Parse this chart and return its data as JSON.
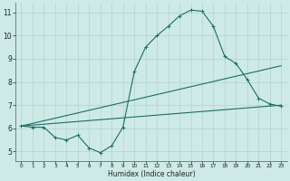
{
  "xlabel": "Humidex (Indice chaleur)",
  "xlim": [
    -0.5,
    23.5
  ],
  "ylim": [
    4.6,
    11.4
  ],
  "yticks": [
    5,
    6,
    7,
    8,
    9,
    10,
    11
  ],
  "xticks": [
    0,
    1,
    2,
    3,
    4,
    5,
    6,
    7,
    8,
    9,
    10,
    11,
    12,
    13,
    14,
    15,
    16,
    17,
    18,
    19,
    20,
    21,
    22,
    23
  ],
  "bg_color": "#ceeae6",
  "grid_color": "#b0d4d0",
  "line_color": "#1a6e64",
  "curve1_x": [
    0,
    1,
    2,
    3,
    4,
    5,
    6,
    7,
    8,
    9,
    10,
    11,
    12,
    13,
    14,
    15,
    16,
    17,
    18,
    19,
    20,
    21,
    22,
    23
  ],
  "curve1_y": [
    6.1,
    6.05,
    6.05,
    5.6,
    5.5,
    5.7,
    5.15,
    4.95,
    5.25,
    6.05,
    8.45,
    9.5,
    10.0,
    10.4,
    10.85,
    11.1,
    11.05,
    10.4,
    9.1,
    8.8,
    8.1,
    7.3,
    7.05,
    6.95
  ],
  "line1_x": [
    0,
    23
  ],
  "line1_y": [
    6.1,
    7.0
  ],
  "line2_x": [
    0,
    23
  ],
  "line2_y": [
    6.1,
    8.7
  ]
}
